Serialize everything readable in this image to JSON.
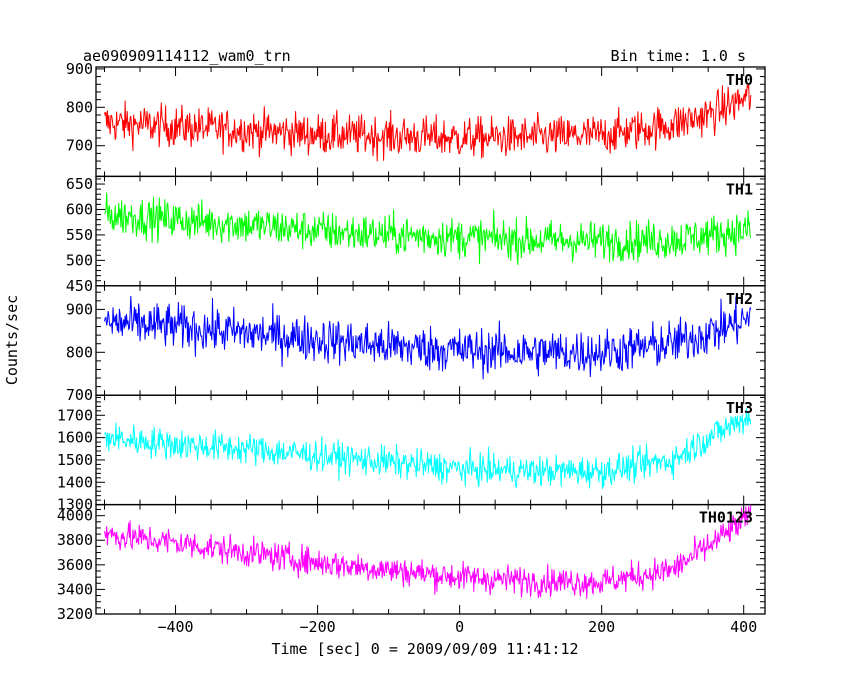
{
  "chart_data": {
    "type": "line",
    "title": "ae090909114112_wam0_trn",
    "bin_time_label": "Bin time: 1.0 s",
    "xlabel": "Time [sec] 0 = 2009/09/09 11:41:12",
    "ylabel": "Counts/sec",
    "xlim": [
      -512,
      430
    ],
    "x_ticks": [
      -400,
      -200,
      0,
      200,
      400
    ],
    "panels": [
      {
        "name": "TH0",
        "color": "#ff0000",
        "ylim": [
          620,
          905
        ],
        "y_ticks": [
          700,
          800,
          900
        ],
        "trend": {
          "x": [
            -500,
            -400,
            -300,
            -200,
            -100,
            0,
            100,
            200,
            300,
            350,
            410
          ],
          "y": [
            760,
            750,
            740,
            730,
            725,
            720,
            722,
            728,
            755,
            780,
            830
          ]
        },
        "noise": 38
      },
      {
        "name": "TH1",
        "color": "#00ff00",
        "ylim": [
          450,
          665
        ],
        "y_ticks": [
          450,
          500,
          550,
          600,
          650
        ],
        "trend": {
          "x": [
            -500,
            -400,
            -300,
            -200,
            -100,
            0,
            100,
            200,
            300,
            410
          ],
          "y": [
            590,
            580,
            570,
            558,
            550,
            545,
            540,
            538,
            540,
            560
          ]
        },
        "noise": 28
      },
      {
        "name": "TH2",
        "color": "#0000ff",
        "ylim": [
          700,
          955
        ],
        "y_ticks": [
          700,
          800,
          900
        ],
        "trend": {
          "x": [
            -500,
            -400,
            -300,
            -200,
            -100,
            0,
            100,
            200,
            300,
            350,
            410
          ],
          "y": [
            870,
            860,
            845,
            830,
            815,
            805,
            800,
            800,
            820,
            845,
            880
          ]
        },
        "noise": 38
      },
      {
        "name": "TH3",
        "color": "#00ffff",
        "ylim": [
          1300,
          1790
        ],
        "y_ticks": [
          1300,
          1400,
          1500,
          1600,
          1700
        ],
        "trend": {
          "x": [
            -500,
            -400,
            -300,
            -200,
            -100,
            0,
            100,
            200,
            300,
            350,
            410
          ],
          "y": [
            1600,
            1570,
            1550,
            1520,
            1490,
            1460,
            1450,
            1450,
            1500,
            1600,
            1700
          ]
        },
        "noise": 50
      },
      {
        "name": "TH0123",
        "color": "#ff00ff",
        "ylim": [
          3200,
          4090
        ],
        "y_ticks": [
          3200,
          3400,
          3600,
          3800,
          4000
        ],
        "trend": {
          "x": [
            -500,
            -400,
            -300,
            -200,
            -100,
            0,
            100,
            200,
            300,
            350,
            410
          ],
          "y": [
            3850,
            3780,
            3700,
            3620,
            3560,
            3500,
            3470,
            3460,
            3560,
            3750,
            4000
          ]
        },
        "noise": 85
      }
    ]
  }
}
